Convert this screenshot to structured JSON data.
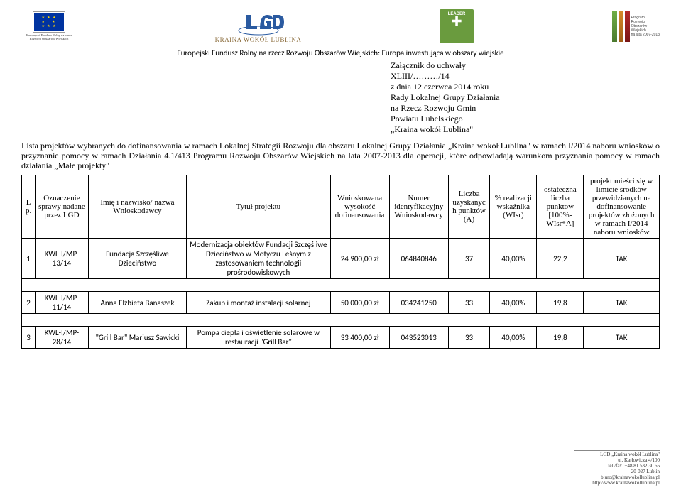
{
  "logos": {
    "eu_caption": "Europejski Fundusz Rolny na rzecz Rozwoju Obszarów Wiejskich",
    "lgd_caption": "KRAINA WOKÓŁ LUBLINA",
    "leader_label": "LEADER",
    "prow_text": "Program\nRozwoju\nObszarów\nWiejskich\nna lata 2007-2013"
  },
  "fund_line": "Europejski Fundusz Rolny na rzecz Rozwoju Obszarów Wiejskich: Europa inwestująca w obszary wiejskie",
  "attachment": {
    "l1": "Załącznik do uchwały",
    "l2": "XLIII/………/14",
    "l3": "z dnia 12 czerwca 2014 roku",
    "l4": "Rady Lokalnej Grupy Działania",
    "l5": "na Rzecz Rozwoju Gmin",
    "l6": "Powiatu Lubelskiego",
    "l7": "„Kraina wokół Lublina\""
  },
  "intro": "Lista projektów wybranych do dofinansowania w ramach Lokalnej Strategii Rozwoju dla obszaru Lokalnej Grupy Działania „Kraina wokół Lublina\" w ramach I/2014 naboru wniosków o przyznanie pomocy w ramach Działania 4.1/413 Programu Rozwoju Obszarów Wiejskich na lata 2007-2013 dla operacji, które odpowiadają warunkom przyznania pomocy w ramach działania „Małe projekty\"",
  "headers": {
    "lp": "Lp.",
    "ozn": "Oznaczenie sprawy nadane przez LGD",
    "name": "Imię i nazwisko/ nazwa Wnioskodawcy",
    "title": "Tytuł projektu",
    "amount": "Wnioskowana wysokość dofinansowania",
    "id": "Numer identyfikacyjny Wnioskodawcy",
    "pts": "Liczba uzyskanych punktów (A)",
    "pct": "% realizacji wskaźnika (WIsr)",
    "ost": "ostateczna liczba punktow [100%-WIsr*A]",
    "fit": "projekt mieści się w limicie środków przewidzianych na dofinansowanie projektów złożonych w ramach I/2014 naboru wniosków"
  },
  "rows": [
    {
      "lp": "1",
      "ozn": "KWL-I/MP-13/14",
      "name": "Fundacja Szczęśliwe Dzieciństwo",
      "title": "Modernizacja obiektów Fundacji Szczęśliwe Dzieciństwo w Motyczu Leśnym z zastosowaniem technologii prośrodowiskowych",
      "amount": "24 900,00 zł",
      "id": "064840846",
      "pts": "37",
      "pct": "40,00%",
      "ost": "22,2",
      "fit": "TAK"
    },
    {
      "lp": "2",
      "ozn": "KWL-I/MP-11/14",
      "name": "Anna Elżbieta Banaszek",
      "title": "Zakup i montaż instalacji solarnej",
      "amount": "50 000,00 zł",
      "id": "034241250",
      "pts": "33",
      "pct": "40,00%",
      "ost": "19,8",
      "fit": "TAK"
    },
    {
      "lp": "3",
      "ozn": "KWL-I/MP-28/14",
      "name": "\"Grill Bar\" Mariusz Sawicki",
      "title": "Pompa ciepła i oświetlenie solarowe w restauracji \"Grill Bar\"",
      "amount": "33 400,00 zł",
      "id": "043523013",
      "pts": "33",
      "pct": "40,00%",
      "ost": "19,8",
      "fit": "TAK"
    }
  ],
  "footer": {
    "l1": "LGD „Kraina wokół Lublina\"",
    "l2": "ul. Karłowicza 4/100",
    "l3": "tel./fax. +48 81 532 30 65",
    "l4": "20-027 Lublin",
    "l5": "biuro@krainawokollublina.pl",
    "l6": "http://www.krainawokollublina.pl"
  }
}
